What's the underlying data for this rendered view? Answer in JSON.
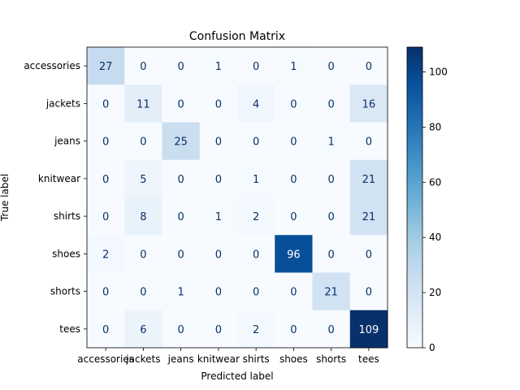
{
  "chart_data": {
    "type": "heatmap",
    "title": "Confusion Matrix",
    "xlabel": "Predicted label",
    "ylabel": "True label",
    "x_categories": [
      "accessories",
      "jackets",
      "jeans",
      "knitwear",
      "shirts",
      "shoes",
      "shorts",
      "tees"
    ],
    "y_categories": [
      "accessories",
      "jackets",
      "jeans",
      "knitwear",
      "shirts",
      "shoes",
      "shorts",
      "tees"
    ],
    "values": [
      [
        27,
        0,
        0,
        1,
        0,
        1,
        0,
        0
      ],
      [
        0,
        11,
        0,
        0,
        4,
        0,
        0,
        16
      ],
      [
        0,
        0,
        25,
        0,
        0,
        0,
        1,
        0
      ],
      [
        0,
        5,
        0,
        0,
        1,
        0,
        0,
        21
      ],
      [
        0,
        8,
        0,
        1,
        2,
        0,
        0,
        21
      ],
      [
        2,
        0,
        0,
        0,
        0,
        96,
        0,
        0
      ],
      [
        0,
        0,
        1,
        0,
        0,
        0,
        21,
        0
      ],
      [
        0,
        6,
        0,
        0,
        2,
        0,
        0,
        109
      ]
    ],
    "colormap": "Blues",
    "vmin": 0,
    "vmax": 109,
    "colorbar_ticks": [
      0,
      20,
      40,
      60,
      80,
      100
    ],
    "colorbar_tick_labels": [
      "0",
      "20",
      "40",
      "60",
      "80",
      "100"
    ]
  }
}
